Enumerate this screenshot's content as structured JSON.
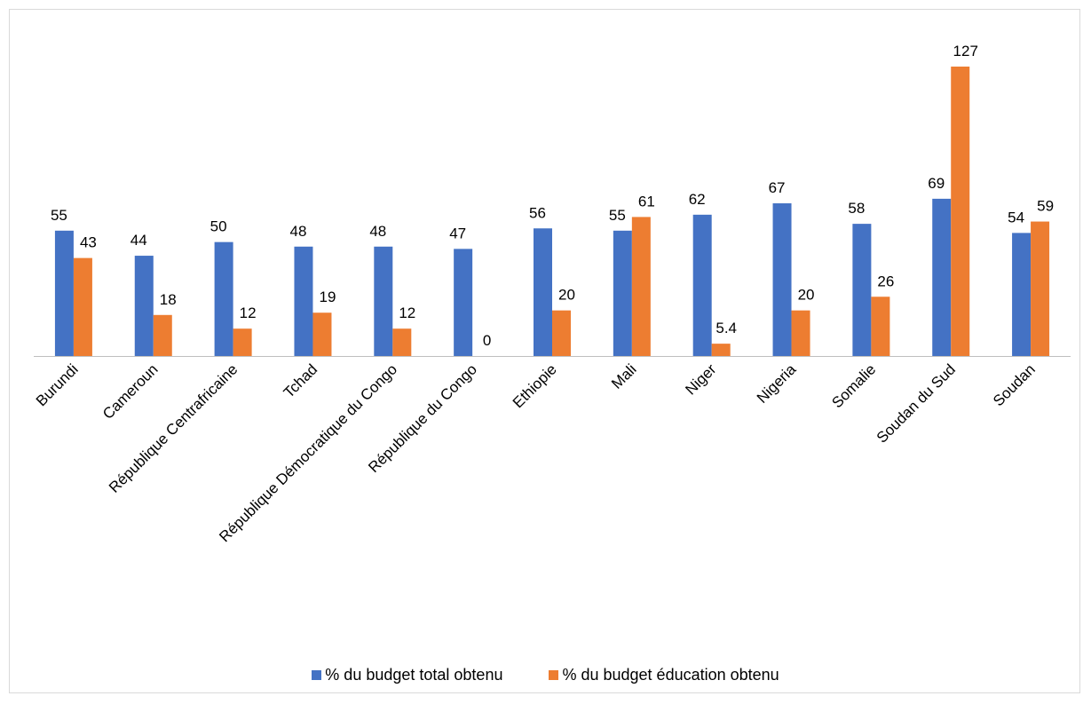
{
  "chart_data": {
    "type": "bar",
    "title": "",
    "xlabel": "",
    "ylabel": "",
    "ylim": [
      0,
      130
    ],
    "grid": false,
    "legend_position": "bottom",
    "categories": [
      "Burundi",
      "Cameroun",
      "République Centrafricaine",
      "Tchad",
      "République Démocratique du Congo",
      "République du Congo",
      "Ethiopie",
      "Mali",
      "Niger",
      "Nigeria",
      "Somalie",
      "Soudan du Sud",
      "Soudan"
    ],
    "series": [
      {
        "name": "% du budget total obtenu",
        "color": "#4472c4",
        "values": [
          55,
          44,
          50,
          48,
          48,
          47,
          56,
          55,
          62,
          67,
          58,
          69,
          54
        ],
        "labels": [
          "55",
          "44",
          "50",
          "48",
          "48",
          "47",
          "56",
          "55",
          "62",
          "67",
          "58",
          "69",
          "54"
        ]
      },
      {
        "name": "% du budget éducation obtenu",
        "color": "#ed7d31",
        "values": [
          43,
          18,
          12,
          19,
          12,
          0,
          20,
          61,
          5.4,
          20,
          26,
          127,
          59
        ],
        "labels": [
          "43",
          "18",
          "12",
          "19",
          "12",
          "0",
          "20",
          "61",
          "5.4",
          "20",
          "26",
          "127",
          "59"
        ]
      }
    ]
  }
}
